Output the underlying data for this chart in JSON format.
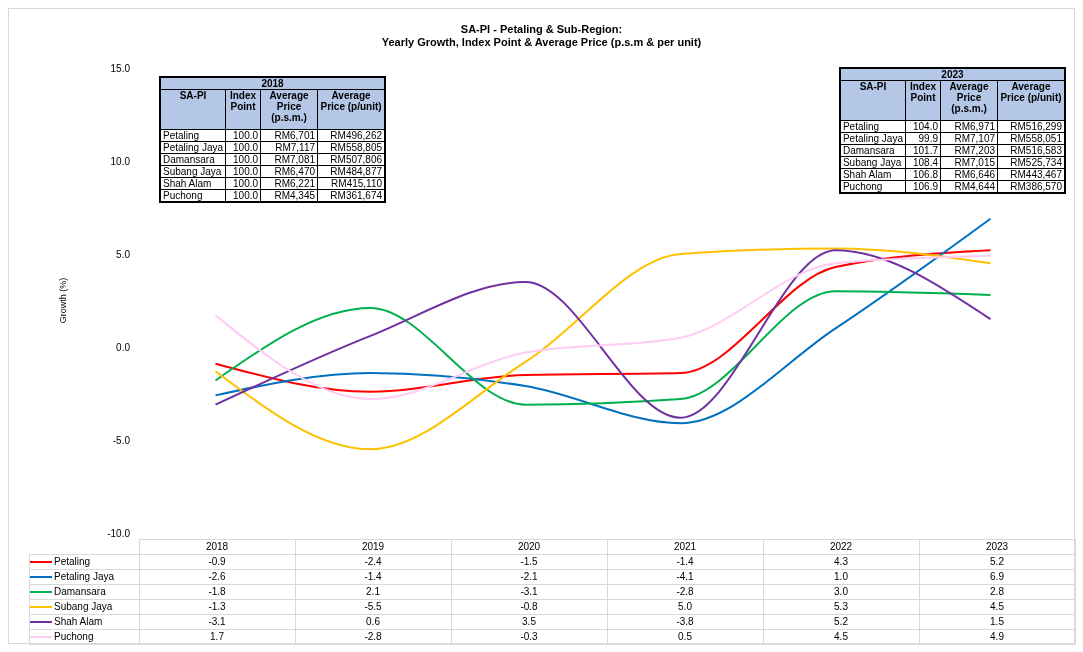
{
  "chart_data": {
    "type": "line",
    "title": "SA-PI -  Petaling & Sub-Region:",
    "subtitle": "Yearly Growth, Index Point & Average Price (p.s.m & per unit)",
    "ylabel": "Growth (%)",
    "categories": [
      "2018",
      "2019",
      "2020",
      "2021",
      "2022",
      "2023"
    ],
    "series": [
      {
        "name": "Petaling",
        "color": "#ff0000",
        "values": [
          -0.9,
          -2.4,
          -1.5,
          -1.4,
          4.3,
          5.2
        ],
        "value_labels": [
          "-0.9",
          "-2.4",
          "-1.5",
          "-1.4",
          "4.3",
          "5.2"
        ]
      },
      {
        "name": "Petaling Jaya",
        "color": "#0070c0",
        "values": [
          -2.6,
          -1.4,
          -2.1,
          -4.1,
          1.0,
          6.9
        ],
        "value_labels": [
          "-2.6",
          "-1.4",
          "-2.1",
          "-4.1",
          "1.0",
          "6.9"
        ]
      },
      {
        "name": "Damansara",
        "color": "#00b050",
        "values": [
          -1.8,
          2.1,
          -3.1,
          -2.8,
          3.0,
          2.8
        ],
        "value_labels": [
          "-1.8",
          "2.1",
          "-3.1",
          "-2.8",
          "3.0",
          "2.8"
        ]
      },
      {
        "name": "Subang Jaya",
        "color": "#ffc000",
        "values": [
          -1.3,
          -5.5,
          -0.8,
          5.0,
          5.3,
          4.5
        ],
        "value_labels": [
          "-1.3",
          "-5.5",
          "-0.8",
          "5.0",
          "5.3",
          "4.5"
        ]
      },
      {
        "name": "Shah Alam",
        "color": "#7030a0",
        "values": [
          -3.1,
          0.6,
          3.5,
          -3.8,
          5.2,
          1.5
        ],
        "value_labels": [
          "-3.1",
          "0.6",
          "3.5",
          "-3.8",
          "5.2",
          "1.5"
        ]
      },
      {
        "name": "Puchong",
        "color": "#ffccf5",
        "values": [
          1.7,
          -2.8,
          -0.3,
          0.5,
          4.5,
          4.9
        ],
        "value_labels": [
          "1.7",
          "-2.8",
          "-0.3",
          "0.5",
          "4.5",
          "4.9"
        ]
      }
    ],
    "ylim": [
      -10,
      15
    ],
    "yticks": [
      {
        "value": -10,
        "label": "-10.0"
      },
      {
        "value": -5,
        "label": "-5.0"
      },
      {
        "value": 0,
        "label": "0.0"
      },
      {
        "value": 5,
        "label": "5.0"
      },
      {
        "value": 10,
        "label": "10.0"
      },
      {
        "value": 15,
        "label": "15.0"
      }
    ],
    "grid": false,
    "legend": "bottom",
    "marker": "none",
    "line_style": "solid",
    "annotations": [
      "2018",
      "SA-PI\tIndex Point\tAverage Price (p.s.m.)\tAverage Price (p/unit)",
      "Petaling\t100.0\tRM6,701\tRM496,262",
      "Petaling Jaya\t100.0\tRM7,117\tRM558,805",
      "Damansara\t100.0\tRM7,081\tRM507,806",
      "Subang Jaya\t100.0\tRM6,470\tRM484,877",
      "Shah Alam\t100.0\tRM6,221\tRM415,110",
      "Puchong\t100.0\tRM4,345\tRM361,674",
      "2023",
      "SA-PI\tIndex Point\tAverage Price (p.s.m.)\tAverage Price (p/unit)",
      "Petaling\t104.0\tRM6,971\tRM516,299",
      "Petaling Jaya\t99.9\tRM7,107\tRM558,051",
      "Damansara\t101.7\tRM7,203\tRM516,583",
      "Subang Jaya\t108.4\tRM7,015\tRM525,734",
      "Shah Alam\t106.8\tRM6,646\tRM443,467",
      "Puchong\t106.9\tRM4,644\tRM386,570"
    ]
  }
}
